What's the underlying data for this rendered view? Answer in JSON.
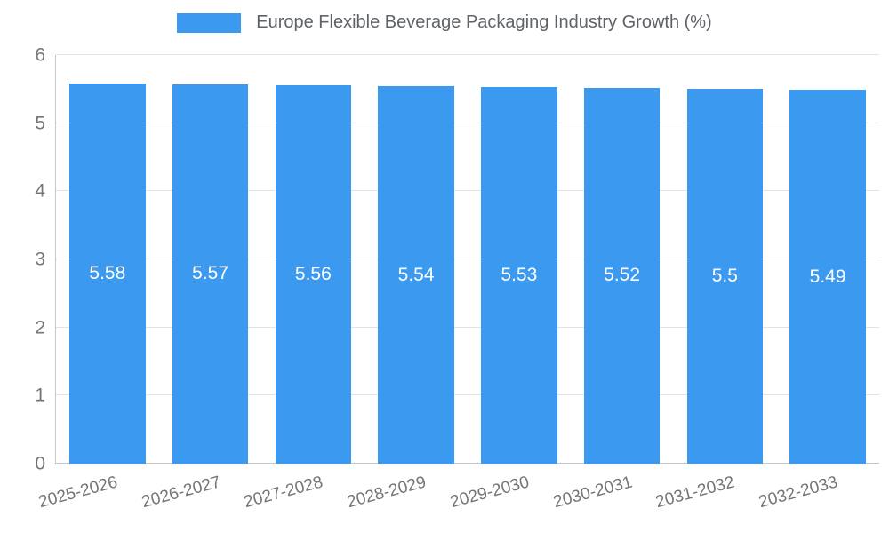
{
  "colors": {
    "bar": "#3b99f0",
    "grid": "#e3e3e3",
    "axis": "#c7c7c7",
    "tick_text": "#757575",
    "title_text": "#5f6368",
    "bar_label_text": "#ffffff"
  },
  "chart_data": {
    "type": "bar",
    "title": "Europe Flexible Beverage Packaging Industry Growth (%)",
    "categories": [
      "2025-2026",
      "2026-2027",
      "2027-2028",
      "2028-2029",
      "2029-2030",
      "2030-2031",
      "2031-2032",
      "2032-2033"
    ],
    "values": [
      5.58,
      5.57,
      5.56,
      5.54,
      5.53,
      5.52,
      5.5,
      5.49
    ],
    "bar_labels": [
      "5.58",
      "5.57",
      "5.56",
      "5.54",
      "5.53",
      "5.52",
      "5.5",
      "5.49"
    ],
    "xlabel": "",
    "ylabel": "",
    "ylim": [
      0,
      6
    ],
    "yticks": [
      0,
      1,
      2,
      3,
      4,
      5,
      6
    ],
    "legend_position": "top",
    "grid": true
  }
}
